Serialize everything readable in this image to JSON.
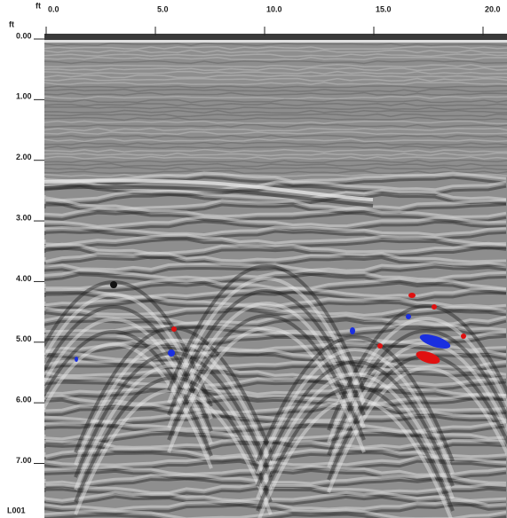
{
  "chart_data": {
    "type": "radargram",
    "x_label": "ft",
    "y_label": "ft",
    "line_name": "L001",
    "xlim": [
      0,
      21.1
    ],
    "ylim": [
      0,
      7.9
    ],
    "xticks": [
      {
        "value": 0,
        "label": "0.0"
      },
      {
        "value": 5,
        "label": "5.0"
      },
      {
        "value": 10,
        "label": "10.0"
      },
      {
        "value": 15,
        "label": "15.0"
      },
      {
        "value": 20,
        "label": "20.0"
      }
    ],
    "yticks": [
      {
        "value": 0,
        "label": "0.00"
      },
      {
        "value": 1,
        "label": "1.00"
      },
      {
        "value": 2,
        "label": "2.00"
      },
      {
        "value": 3,
        "label": "3.00"
      },
      {
        "value": 4,
        "label": "4.00"
      },
      {
        "value": 5,
        "label": "5.00"
      },
      {
        "value": 6,
        "label": "6.00"
      },
      {
        "value": 7,
        "label": "7.00"
      }
    ]
  }
}
